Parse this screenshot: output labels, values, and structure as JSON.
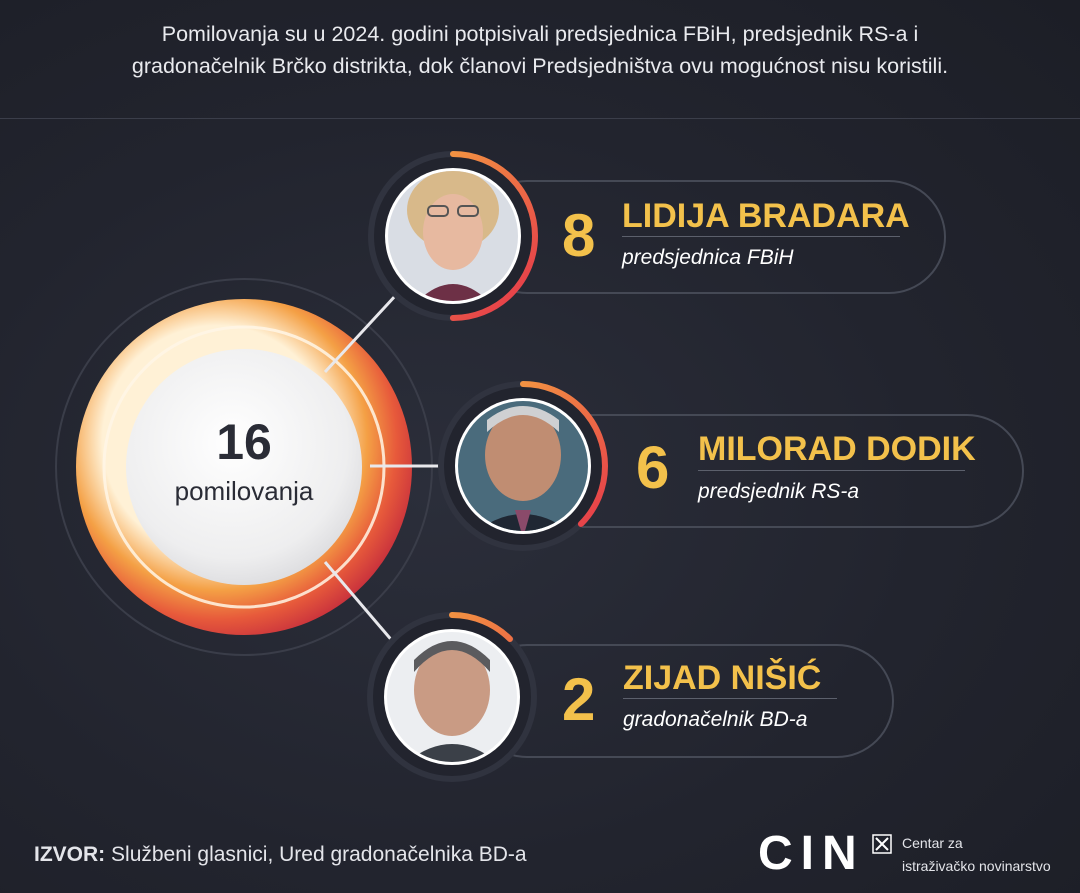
{
  "title": {
    "line1": "Pomilovanja su u 2024. godini potpisivali predsjednica FBiH, predsjednik RS-a i",
    "line2": "gradonačelnik Brčko distrikta, dok članovi Predsjedništva ovu mogućnost nisu koristili."
  },
  "center": {
    "value": "16",
    "label": "pomilovanja"
  },
  "chart_data": {
    "type": "bar",
    "total": 16,
    "total_label": "pomilovanja",
    "categories": [
      "LIDIJA BRADARA",
      "MILORAD DODIK",
      "ZIJAD NIŠIĆ"
    ],
    "values": [
      8,
      6,
      2
    ],
    "roles": [
      "predsjednica FBiH",
      "predsjednik RS-a",
      "gradonačelnik BD-a"
    ]
  },
  "people": [
    {
      "count": "8",
      "name": "LIDIJA BRADARA",
      "role": "predsjednica FBiH"
    },
    {
      "count": "6",
      "name": "MILORAD DODIK",
      "role": "predsjednik RS-a"
    },
    {
      "count": "2",
      "name": "ZIJAD NIŠIĆ",
      "role": "gradonačelnik BD-a"
    }
  ],
  "source": {
    "label": "IZVOR:",
    "text": "Službeni glasnici, Ured gradonačelnika BD-a"
  },
  "logo": {
    "letters": "CIN",
    "line1": "Centar za",
    "line2": "istraživačko novinarstvo"
  },
  "colors": {
    "background": "#22242e",
    "accent": "#f3c14b",
    "ring_start": "#e4324b",
    "ring_end": "#f7b13f"
  }
}
